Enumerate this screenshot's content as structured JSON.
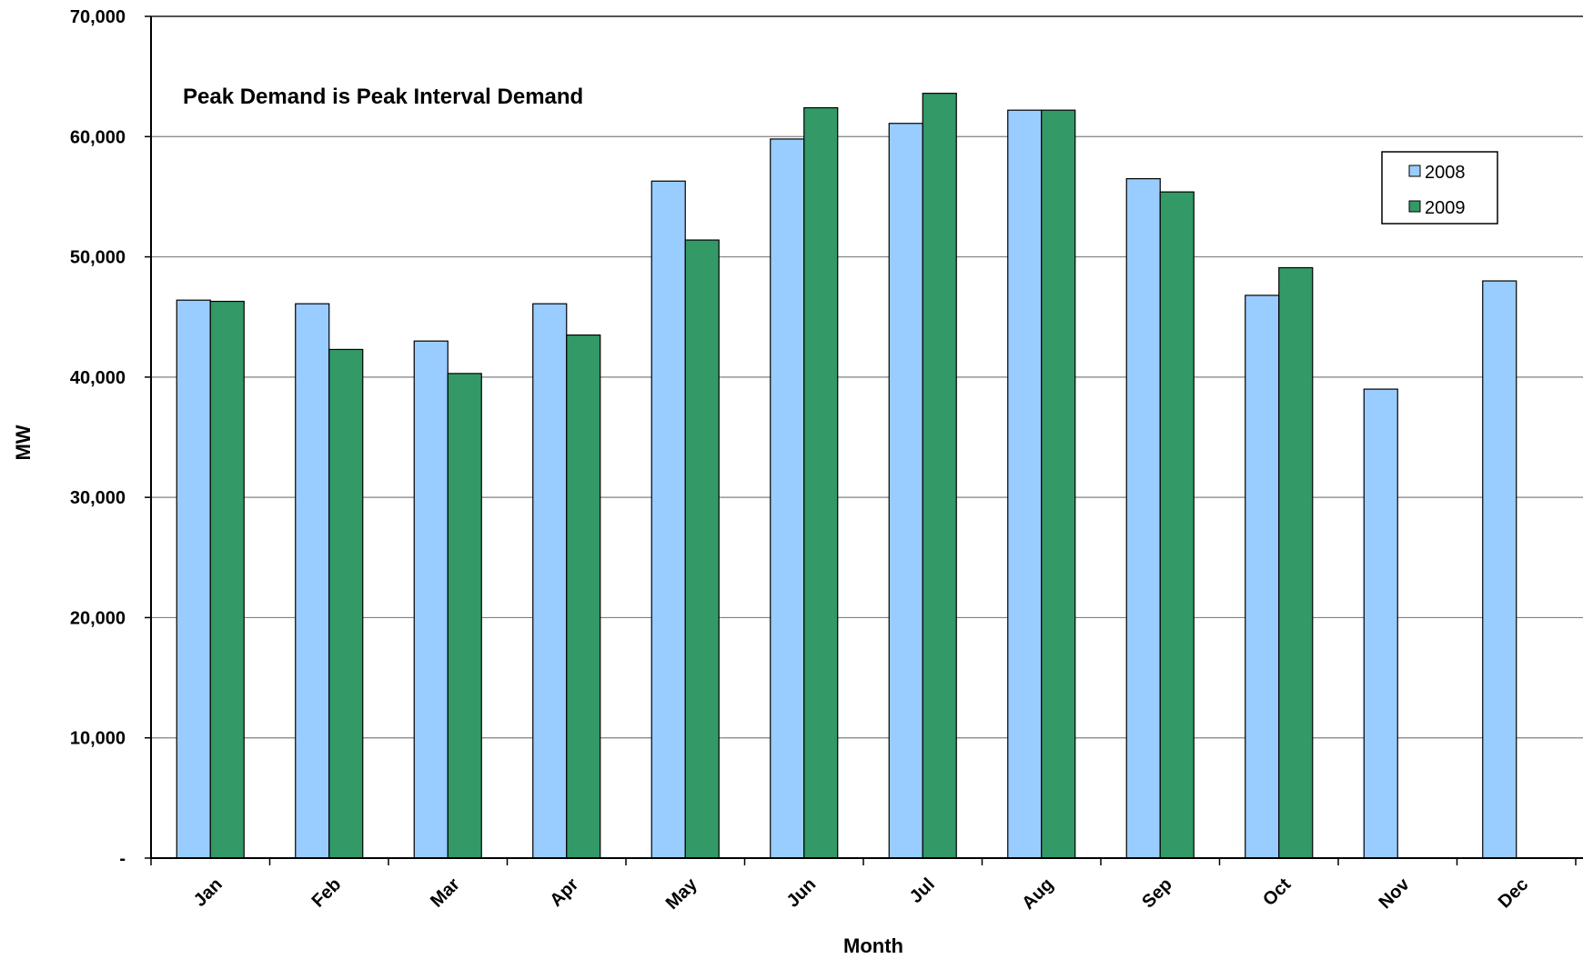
{
  "chart_data": {
    "type": "bar",
    "title": "",
    "annotation": "Peak Demand is Peak Interval Demand",
    "xlabel": "Month",
    "ylabel": "MW",
    "categories": [
      "Jan",
      "Feb",
      "Mar",
      "Apr",
      "May",
      "Jun",
      "Jul",
      "Aug",
      "Sep",
      "Oct",
      "Nov",
      "Dec"
    ],
    "series": [
      {
        "name": "2008",
        "color": "#99CCFF",
        "values": [
          46400,
          46100,
          43000,
          46100,
          56300,
          59800,
          61100,
          62200,
          56500,
          46800,
          39000,
          48000
        ]
      },
      {
        "name": "2009",
        "color": "#339966",
        "values": [
          46300,
          42300,
          40300,
          43500,
          51400,
          62400,
          63600,
          62200,
          55400,
          49100,
          null,
          null
        ]
      }
    ],
    "ylim": [
      0,
      70000
    ],
    "yticks": [
      0,
      10000,
      20000,
      30000,
      40000,
      50000,
      60000,
      70000
    ],
    "ytick_labels": [
      "-",
      "10,000",
      "20,000",
      "30,000",
      "40,000",
      "50,000",
      "60,000",
      "70,000"
    ],
    "grid": true,
    "legend_position": "top-right"
  }
}
